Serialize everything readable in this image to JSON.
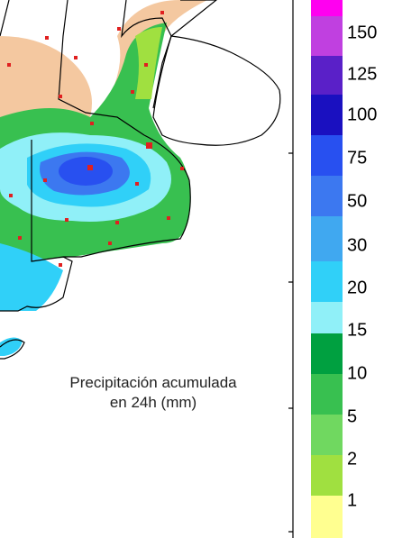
{
  "legend": {
    "labels": [
      "150",
      "125",
      "100",
      "75",
      "50",
      "30",
      "20",
      "15",
      "10",
      "5",
      "2",
      "1"
    ]
  },
  "caption": {
    "lines": [
      "Precipitación acumulada",
      "en 24h (mm)"
    ]
  }
}
